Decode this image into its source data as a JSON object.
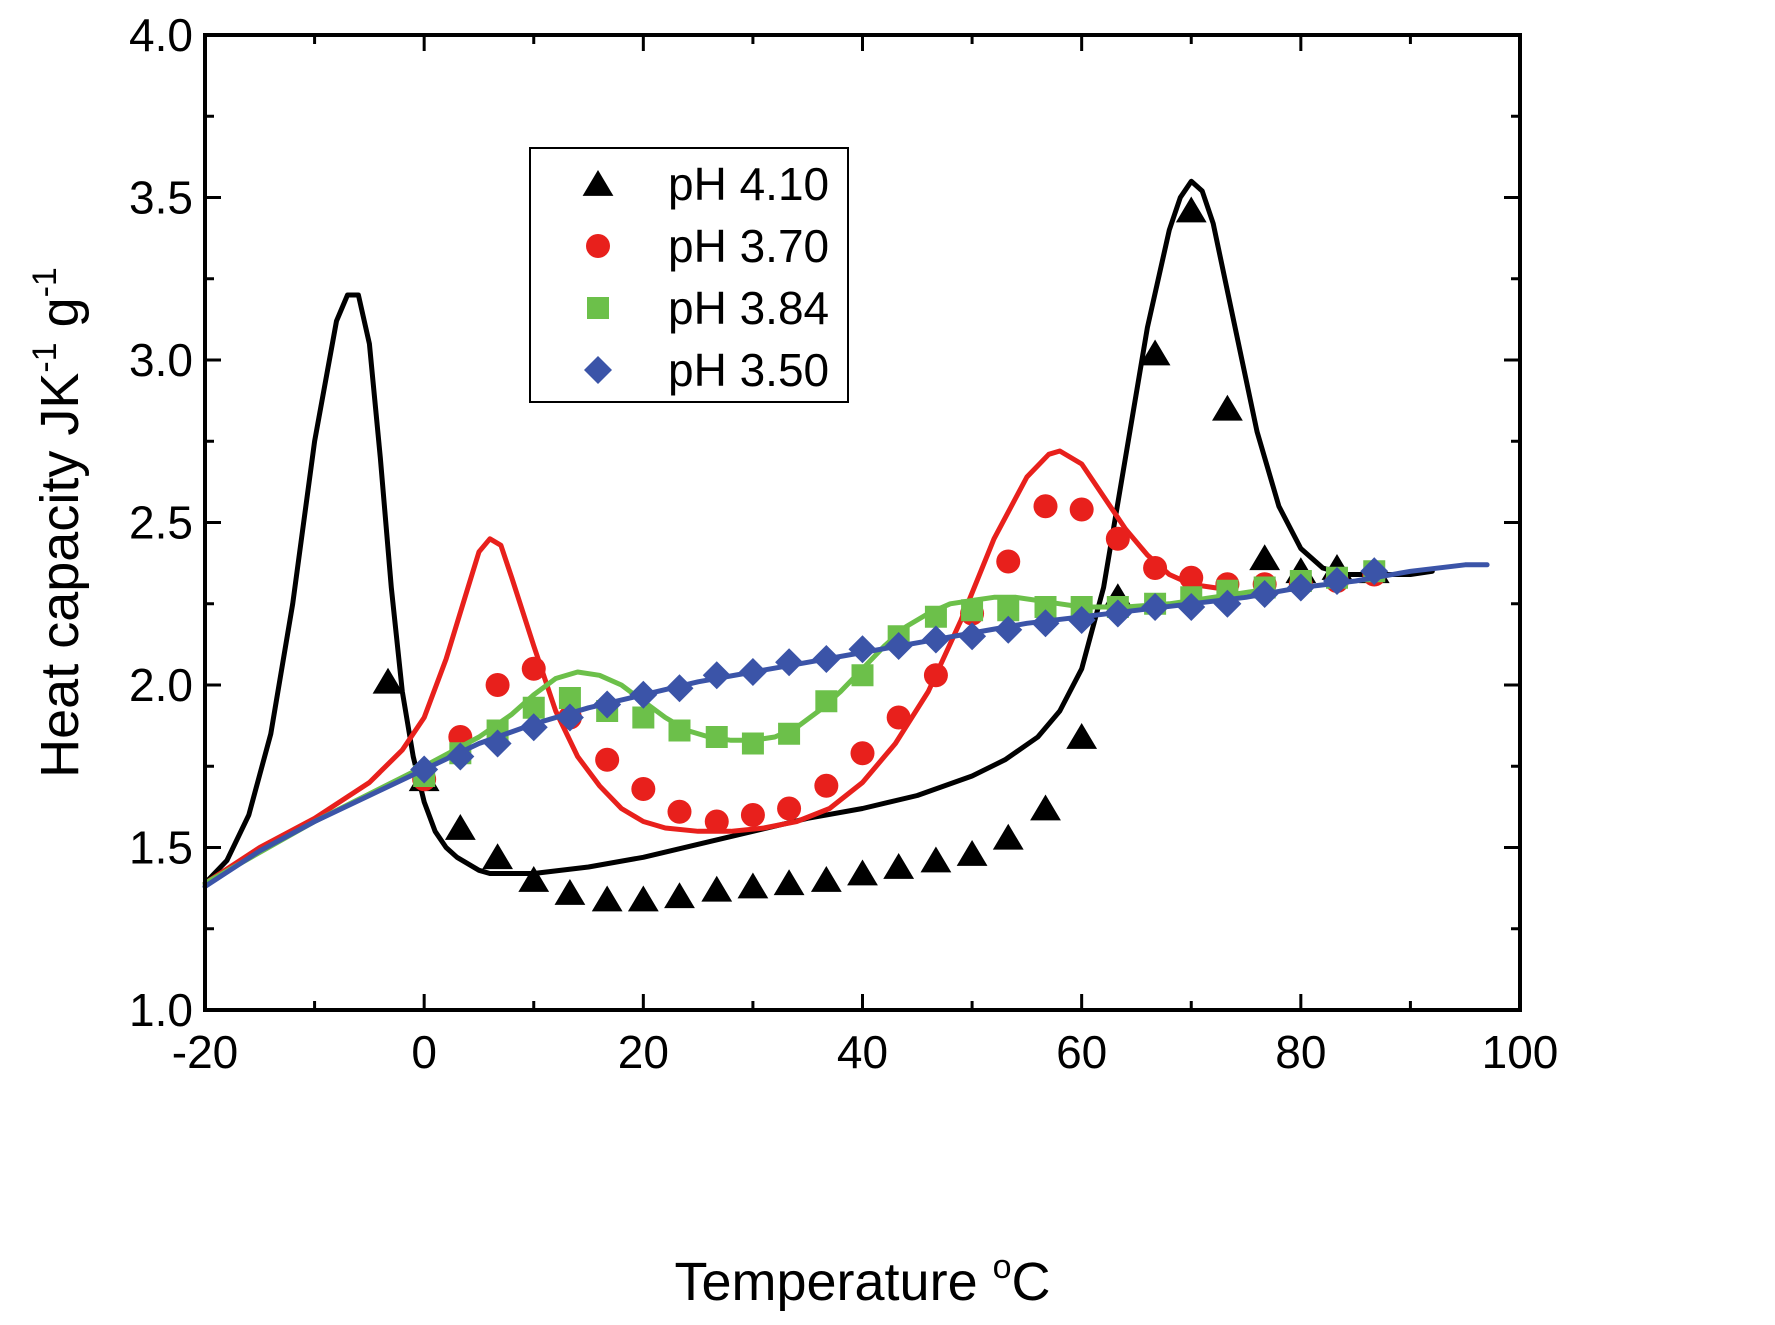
{
  "chart_data": {
    "type": "scatter",
    "xlabel": "Temperature",
    "xlabel_unit_sup": "o",
    "xlabel_unit": "C",
    "ylabel": "Heat capacity JK",
    "ylabel_exp1": "-1",
    "ylabel_mid": " g",
    "ylabel_exp2": "-1",
    "xlim": [
      -20,
      100
    ],
    "ylim": [
      1.0,
      4.0
    ],
    "xticks": [
      -20,
      0,
      20,
      40,
      60,
      80,
      100
    ],
    "yticks": [
      1.0,
      1.5,
      2.0,
      2.5,
      3.0,
      3.5,
      4.0
    ],
    "xtick_labels": [
      "-20",
      "0",
      "20",
      "40",
      "60",
      "80",
      "100"
    ],
    "ytick_labels": [
      "1.0",
      "1.5",
      "2.0",
      "2.5",
      "3.0",
      "3.5",
      "4.0"
    ],
    "grid": false,
    "legend_position": "upper-left-center",
    "series": [
      {
        "name": "pH 4.10",
        "color": "#000000",
        "marker": "triangle",
        "points": [
          [
            -3.3,
            2.01
          ],
          [
            0,
            1.71
          ],
          [
            3.3,
            1.56
          ],
          [
            6.7,
            1.47
          ],
          [
            10,
            1.4
          ],
          [
            13.3,
            1.36
          ],
          [
            16.7,
            1.34
          ],
          [
            20,
            1.34
          ],
          [
            23.3,
            1.35
          ],
          [
            26.7,
            1.37
          ],
          [
            30,
            1.38
          ],
          [
            33.3,
            1.39
          ],
          [
            36.7,
            1.4
          ],
          [
            40,
            1.42
          ],
          [
            43.3,
            1.44
          ],
          [
            46.7,
            1.46
          ],
          [
            50,
            1.48
          ],
          [
            53.3,
            1.53
          ],
          [
            56.7,
            1.62
          ],
          [
            60,
            1.84
          ],
          [
            63.3,
            2.27
          ],
          [
            66.7,
            3.02
          ],
          [
            70,
            3.46
          ],
          [
            73.3,
            2.85
          ],
          [
            76.7,
            2.39
          ],
          [
            80,
            2.35
          ],
          [
            83.3,
            2.36
          ],
          [
            86.7,
            2.35
          ]
        ],
        "curve": [
          [
            -20,
            1.39
          ],
          [
            -18,
            1.46
          ],
          [
            -16,
            1.6
          ],
          [
            -14,
            1.85
          ],
          [
            -12,
            2.25
          ],
          [
            -10,
            2.75
          ],
          [
            -8,
            3.12
          ],
          [
            -7,
            3.2
          ],
          [
            -6,
            3.2
          ],
          [
            -5,
            3.05
          ],
          [
            -4,
            2.7
          ],
          [
            -3,
            2.3
          ],
          [
            -2,
            1.98
          ],
          [
            -1,
            1.78
          ],
          [
            0,
            1.64
          ],
          [
            1,
            1.55
          ],
          [
            2,
            1.5
          ],
          [
            3,
            1.47
          ],
          [
            4,
            1.45
          ],
          [
            5,
            1.43
          ],
          [
            6,
            1.42
          ],
          [
            8,
            1.42
          ],
          [
            10,
            1.42
          ],
          [
            15,
            1.44
          ],
          [
            20,
            1.47
          ],
          [
            25,
            1.51
          ],
          [
            30,
            1.55
          ],
          [
            35,
            1.59
          ],
          [
            40,
            1.62
          ],
          [
            45,
            1.66
          ],
          [
            50,
            1.72
          ],
          [
            53,
            1.77
          ],
          [
            56,
            1.84
          ],
          [
            58,
            1.92
          ],
          [
            60,
            2.05
          ],
          [
            62,
            2.3
          ],
          [
            64,
            2.7
          ],
          [
            66,
            3.1
          ],
          [
            68,
            3.4
          ],
          [
            69,
            3.5
          ],
          [
            70,
            3.55
          ],
          [
            71,
            3.52
          ],
          [
            72,
            3.42
          ],
          [
            74,
            3.1
          ],
          [
            76,
            2.78
          ],
          [
            78,
            2.55
          ],
          [
            80,
            2.42
          ],
          [
            82,
            2.36
          ],
          [
            84,
            2.34
          ],
          [
            86,
            2.34
          ],
          [
            88,
            2.34
          ],
          [
            90,
            2.34
          ],
          [
            92,
            2.35
          ]
        ]
      },
      {
        "name": "pH 3.70",
        "color": "#e8201c",
        "marker": "circle",
        "points": [
          [
            0,
            1.71
          ],
          [
            3.3,
            1.84
          ],
          [
            6.7,
            2.0
          ],
          [
            10,
            2.05
          ],
          [
            13.3,
            1.9
          ],
          [
            16.7,
            1.77
          ],
          [
            20,
            1.68
          ],
          [
            23.3,
            1.61
          ],
          [
            26.7,
            1.58
          ],
          [
            30,
            1.6
          ],
          [
            33.3,
            1.62
          ],
          [
            36.7,
            1.69
          ],
          [
            40,
            1.79
          ],
          [
            43.3,
            1.9
          ],
          [
            46.7,
            2.03
          ],
          [
            50,
            2.22
          ],
          [
            53.3,
            2.38
          ],
          [
            56.7,
            2.55
          ],
          [
            60,
            2.54
          ],
          [
            63.3,
            2.45
          ],
          [
            66.7,
            2.36
          ],
          [
            70,
            2.33
          ],
          [
            73.3,
            2.31
          ],
          [
            76.7,
            2.31
          ],
          [
            80,
            2.31
          ],
          [
            83.3,
            2.32
          ],
          [
            86.7,
            2.34
          ]
        ],
        "curve": [
          [
            -20,
            1.39
          ],
          [
            -15,
            1.5
          ],
          [
            -10,
            1.59
          ],
          [
            -5,
            1.7
          ],
          [
            -2,
            1.8
          ],
          [
            0,
            1.9
          ],
          [
            2,
            2.08
          ],
          [
            4,
            2.3
          ],
          [
            5,
            2.41
          ],
          [
            6,
            2.45
          ],
          [
            7,
            2.43
          ],
          [
            8,
            2.33
          ],
          [
            10,
            2.12
          ],
          [
            12,
            1.92
          ],
          [
            14,
            1.78
          ],
          [
            16,
            1.69
          ],
          [
            18,
            1.62
          ],
          [
            20,
            1.58
          ],
          [
            22,
            1.56
          ],
          [
            25,
            1.55
          ],
          [
            28,
            1.55
          ],
          [
            31,
            1.56
          ],
          [
            34,
            1.58
          ],
          [
            37,
            1.62
          ],
          [
            40,
            1.7
          ],
          [
            43,
            1.82
          ],
          [
            46,
            1.98
          ],
          [
            49,
            2.2
          ],
          [
            52,
            2.45
          ],
          [
            55,
            2.64
          ],
          [
            57,
            2.71
          ],
          [
            58,
            2.72
          ],
          [
            60,
            2.68
          ],
          [
            62,
            2.58
          ],
          [
            64,
            2.48
          ],
          [
            66,
            2.4
          ],
          [
            68,
            2.34
          ],
          [
            70,
            2.31
          ],
          [
            72,
            2.3
          ],
          [
            74,
            2.29
          ]
        ]
      },
      {
        "name": "pH 3.84",
        "color": "#6cc04a",
        "marker": "square",
        "points": [
          [
            0,
            1.72
          ],
          [
            3.3,
            1.79
          ],
          [
            6.7,
            1.86
          ],
          [
            10,
            1.93
          ],
          [
            13.3,
            1.96
          ],
          [
            16.7,
            1.92
          ],
          [
            20,
            1.9
          ],
          [
            23.3,
            1.86
          ],
          [
            26.7,
            1.84
          ],
          [
            30,
            1.82
          ],
          [
            33.3,
            1.85
          ],
          [
            36.7,
            1.95
          ],
          [
            40,
            2.03
          ],
          [
            43.3,
            2.15
          ],
          [
            46.7,
            2.21
          ],
          [
            50,
            2.23
          ],
          [
            53.3,
            2.23
          ],
          [
            56.7,
            2.24
          ],
          [
            60,
            2.24
          ],
          [
            63.3,
            2.24
          ],
          [
            66.7,
            2.25
          ],
          [
            70,
            2.27
          ],
          [
            73.3,
            2.29
          ],
          [
            76.7,
            2.3
          ],
          [
            80,
            2.32
          ],
          [
            83.3,
            2.33
          ],
          [
            86.7,
            2.35
          ]
        ],
        "curve": [
          [
            -20,
            1.39
          ],
          [
            -10,
            1.58
          ],
          [
            0,
            1.75
          ],
          [
            5,
            1.84
          ],
          [
            8,
            1.91
          ],
          [
            10,
            1.97
          ],
          [
            12,
            2.02
          ],
          [
            14,
            2.04
          ],
          [
            16,
            2.03
          ],
          [
            18,
            2.0
          ],
          [
            20,
            1.95
          ],
          [
            22,
            1.9
          ],
          [
            24,
            1.86
          ],
          [
            26,
            1.84
          ],
          [
            28,
            1.83
          ],
          [
            30,
            1.83
          ],
          [
            32,
            1.84
          ],
          [
            34,
            1.87
          ],
          [
            36,
            1.92
          ],
          [
            38,
            1.98
          ],
          [
            40,
            2.05
          ],
          [
            42,
            2.12
          ],
          [
            44,
            2.18
          ],
          [
            46,
            2.22
          ],
          [
            48,
            2.25
          ],
          [
            50,
            2.26
          ],
          [
            52,
            2.27
          ],
          [
            54,
            2.27
          ],
          [
            56,
            2.26
          ],
          [
            58,
            2.25
          ],
          [
            60,
            2.24
          ],
          [
            64,
            2.24
          ],
          [
            68,
            2.25
          ],
          [
            72,
            2.27
          ],
          [
            76,
            2.29
          ]
        ]
      },
      {
        "name": "pH 3.50",
        "color": "#3b54a8",
        "marker": "diamond",
        "points": [
          [
            0,
            1.74
          ],
          [
            3.3,
            1.78
          ],
          [
            6.7,
            1.82
          ],
          [
            10,
            1.87
          ],
          [
            13.3,
            1.9
          ],
          [
            16.7,
            1.94
          ],
          [
            20,
            1.97
          ],
          [
            23.3,
            1.99
          ],
          [
            26.7,
            2.03
          ],
          [
            30,
            2.04
          ],
          [
            33.3,
            2.07
          ],
          [
            36.7,
            2.08
          ],
          [
            40,
            2.11
          ],
          [
            43.3,
            2.12
          ],
          [
            46.7,
            2.14
          ],
          [
            50,
            2.15
          ],
          [
            53.3,
            2.17
          ],
          [
            56.7,
            2.19
          ],
          [
            60,
            2.2
          ],
          [
            63.3,
            2.22
          ],
          [
            66.7,
            2.24
          ],
          [
            70,
            2.24
          ],
          [
            73.3,
            2.25
          ],
          [
            76.7,
            2.28
          ],
          [
            80,
            2.3
          ],
          [
            83.3,
            2.32
          ],
          [
            86.7,
            2.35
          ]
        ],
        "curve": [
          [
            -20,
            1.38
          ],
          [
            -15,
            1.49
          ],
          [
            -10,
            1.58
          ],
          [
            -5,
            1.66
          ],
          [
            0,
            1.74
          ],
          [
            5,
            1.82
          ],
          [
            10,
            1.88
          ],
          [
            15,
            1.93
          ],
          [
            20,
            1.97
          ],
          [
            25,
            2.01
          ],
          [
            30,
            2.04
          ],
          [
            35,
            2.07
          ],
          [
            40,
            2.1
          ],
          [
            45,
            2.13
          ],
          [
            50,
            2.16
          ],
          [
            55,
            2.19
          ],
          [
            60,
            2.21
          ],
          [
            65,
            2.23
          ],
          [
            70,
            2.25
          ],
          [
            75,
            2.27
          ],
          [
            80,
            2.3
          ],
          [
            85,
            2.32
          ],
          [
            90,
            2.35
          ],
          [
            95,
            2.37
          ],
          [
            97,
            2.37
          ]
        ]
      }
    ]
  }
}
